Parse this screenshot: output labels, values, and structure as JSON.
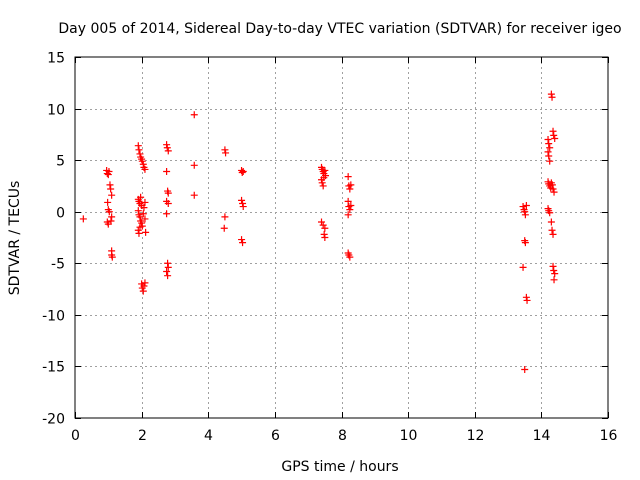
{
  "chart_data": {
    "type": "scatter",
    "title": "Day 005 of 2014, Sidereal Day-to-day VTEC variation (SDTVAR) for receiver igeo",
    "xlabel": "GPS time / hours",
    "ylabel": "SDTVAR / TECUs",
    "xlim": [
      0,
      16
    ],
    "ylim": [
      -20,
      15
    ],
    "xticks": [
      0,
      2,
      4,
      6,
      8,
      10,
      12,
      14,
      16
    ],
    "yticks": [
      -20,
      -15,
      -10,
      -5,
      0,
      5,
      10,
      15
    ],
    "grid": true,
    "marker": "plus",
    "color": "#ff0000",
    "series": [
      {
        "name": "SDTVAR",
        "points": [
          [
            0.25,
            -0.7
          ],
          [
            0.95,
            4.0
          ],
          [
            0.97,
            3.7
          ],
          [
            1.0,
            3.6
          ],
          [
            1.02,
            3.9
          ],
          [
            0.98,
            0.9
          ],
          [
            1.0,
            0.2
          ],
          [
            1.03,
            0.0
          ],
          [
            1.0,
            -1.2
          ],
          [
            0.97,
            -1.0
          ],
          [
            1.05,
            2.6
          ],
          [
            1.07,
            2.2
          ],
          [
            1.1,
            1.6
          ],
          [
            1.08,
            -0.9
          ],
          [
            1.1,
            -0.5
          ],
          [
            1.1,
            -3.8
          ],
          [
            1.1,
            -4.2
          ],
          [
            1.12,
            -4.4
          ],
          [
            1.9,
            6.4
          ],
          [
            1.92,
            6.0
          ],
          [
            1.95,
            5.6
          ],
          [
            1.97,
            5.3
          ],
          [
            2.0,
            5.1
          ],
          [
            2.02,
            4.9
          ],
          [
            2.05,
            4.6
          ],
          [
            2.07,
            4.3
          ],
          [
            2.1,
            4.1
          ],
          [
            1.9,
            1.2
          ],
          [
            1.92,
            1.0
          ],
          [
            1.95,
            0.8
          ],
          [
            1.97,
            1.4
          ],
          [
            2.0,
            0.6
          ],
          [
            1.9,
            0.1
          ],
          [
            1.92,
            -0.3
          ],
          [
            1.95,
            -0.5
          ],
          [
            1.97,
            -0.9
          ],
          [
            2.0,
            -1.1
          ],
          [
            2.02,
            -1.4
          ],
          [
            1.9,
            -1.8
          ],
          [
            1.92,
            -2.1
          ],
          [
            1.95,
            -1.5
          ],
          [
            2.05,
            -0.2
          ],
          [
            2.07,
            0.4
          ],
          [
            2.1,
            0.9
          ],
          [
            2.1,
            -0.7
          ],
          [
            2.12,
            -2.0
          ],
          [
            2.0,
            -7.0
          ],
          [
            2.02,
            -7.4
          ],
          [
            2.05,
            -7.7
          ],
          [
            2.07,
            -7.2
          ],
          [
            2.1,
            -6.9
          ],
          [
            2.75,
            6.5
          ],
          [
            2.77,
            6.2
          ],
          [
            2.8,
            5.9
          ],
          [
            2.75,
            3.9
          ],
          [
            2.78,
            2.0
          ],
          [
            2.8,
            1.8
          ],
          [
            2.75,
            1.0
          ],
          [
            2.8,
            0.8
          ],
          [
            2.75,
            -0.2
          ],
          [
            2.78,
            -5.0
          ],
          [
            2.8,
            -5.4
          ],
          [
            2.75,
            -5.8
          ],
          [
            2.78,
            -6.2
          ],
          [
            3.58,
            9.4
          ],
          [
            3.58,
            4.5
          ],
          [
            3.58,
            1.6
          ],
          [
            4.5,
            6.0
          ],
          [
            4.52,
            5.7
          ],
          [
            4.5,
            -0.5
          ],
          [
            4.48,
            -1.6
          ],
          [
            5.0,
            4.0
          ],
          [
            5.02,
            3.8
          ],
          [
            5.05,
            3.9
          ],
          [
            5.0,
            1.1
          ],
          [
            5.03,
            0.8
          ],
          [
            5.05,
            0.5
          ],
          [
            5.0,
            -2.7
          ],
          [
            5.03,
            -3.0
          ],
          [
            7.4,
            4.3
          ],
          [
            7.42,
            4.1
          ],
          [
            7.45,
            3.9
          ],
          [
            7.47,
            3.7
          ],
          [
            7.5,
            4.0
          ],
          [
            7.52,
            3.5
          ],
          [
            7.4,
            3.1
          ],
          [
            7.42,
            2.8
          ],
          [
            7.45,
            2.5
          ],
          [
            7.47,
            3.3
          ],
          [
            7.4,
            -1.0
          ],
          [
            7.45,
            -1.3
          ],
          [
            7.5,
            -1.6
          ],
          [
            7.48,
            -2.2
          ],
          [
            7.5,
            -2.5
          ],
          [
            8.2,
            3.4
          ],
          [
            8.22,
            2.5
          ],
          [
            8.25,
            2.2
          ],
          [
            8.28,
            2.6
          ],
          [
            8.2,
            1.0
          ],
          [
            8.22,
            0.5
          ],
          [
            8.25,
            0.2
          ],
          [
            8.28,
            0.6
          ],
          [
            8.2,
            -0.3
          ],
          [
            8.2,
            -4.0
          ],
          [
            8.22,
            -4.2
          ],
          [
            8.25,
            -4.4
          ],
          [
            13.45,
            0.5
          ],
          [
            13.48,
            0.2
          ],
          [
            13.5,
            0.0
          ],
          [
            13.52,
            -0.3
          ],
          [
            13.55,
            0.6
          ],
          [
            13.5,
            -2.8
          ],
          [
            13.52,
            -3.0
          ],
          [
            13.45,
            -5.4
          ],
          [
            13.55,
            -8.3
          ],
          [
            13.57,
            -8.6
          ],
          [
            13.5,
            -15.3
          ],
          [
            14.2,
            7.0
          ],
          [
            14.22,
            6.6
          ],
          [
            14.25,
            6.2
          ],
          [
            14.2,
            5.8
          ],
          [
            14.22,
            5.4
          ],
          [
            14.25,
            4.9
          ],
          [
            14.2,
            2.9
          ],
          [
            14.22,
            2.7
          ],
          [
            14.25,
            2.5
          ],
          [
            14.28,
            2.3
          ],
          [
            14.3,
            2.8
          ],
          [
            14.33,
            2.6
          ],
          [
            14.35,
            2.2
          ],
          [
            14.38,
            1.9
          ],
          [
            14.2,
            0.3
          ],
          [
            14.22,
            0.1
          ],
          [
            14.25,
            -0.1
          ],
          [
            14.3,
            -1.0
          ],
          [
            14.32,
            -1.8
          ],
          [
            14.35,
            -2.2
          ],
          [
            14.3,
            11.4
          ],
          [
            14.32,
            11.1
          ],
          [
            14.35,
            7.8
          ],
          [
            14.37,
            7.4
          ],
          [
            14.4,
            7.1
          ],
          [
            14.35,
            -5.3
          ],
          [
            14.37,
            -5.7
          ],
          [
            14.4,
            -6.0
          ],
          [
            14.38,
            -6.6
          ]
        ]
      }
    ]
  }
}
